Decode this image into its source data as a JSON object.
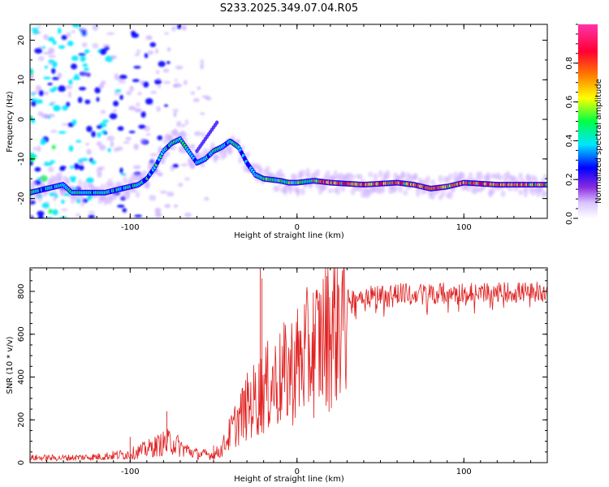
{
  "title": "S233.2025.349.07.04.R05",
  "chart_data": [
    {
      "type": "heatmap",
      "name": "spectrogram",
      "xlabel": "Height of straight line (km)",
      "ylabel": "Frequency (Hz)",
      "xlim": [
        -160,
        150
      ],
      "ylim": [
        -25,
        24
      ],
      "xticks": [
        -100,
        0,
        100
      ],
      "yticks": [
        -20,
        -10,
        0,
        10,
        20
      ],
      "colorbar": {
        "label": "Normalized spectral amplitude",
        "range": [
          0,
          1
        ],
        "ticks": [
          "0.0",
          "0.2",
          "0.4",
          "0.6",
          "0.8"
        ],
        "colors": [
          "#ffffff",
          "#8a2be2",
          "#0000ff",
          "#00e5ff",
          "#00ff44",
          "#ffff00",
          "#ff7a00",
          "#ff0033",
          "#ff33aa"
        ]
      },
      "ridge": [
        [
          -160,
          -18.5
        ],
        [
          -150,
          -17.5
        ],
        [
          -140,
          -16.5
        ],
        [
          -135,
          -18.5
        ],
        [
          -125,
          -18.5
        ],
        [
          -115,
          -18.5
        ],
        [
          -105,
          -17.5
        ],
        [
          -95,
          -16.5
        ],
        [
          -90,
          -15
        ],
        [
          -85,
          -12
        ],
        [
          -80,
          -8
        ],
        [
          -75,
          -6
        ],
        [
          -70,
          -5
        ],
        [
          -60,
          -11
        ],
        [
          -55,
          -10
        ],
        [
          -50,
          -8
        ],
        [
          -45,
          -7
        ],
        [
          -40,
          -5.5
        ],
        [
          -35,
          -7
        ],
        [
          -30,
          -11
        ],
        [
          -25,
          -14
        ],
        [
          -20,
          -15
        ],
        [
          -10,
          -15.5
        ],
        [
          -5,
          -16
        ],
        [
          0,
          -16
        ],
        [
          10,
          -15.5
        ],
        [
          20,
          -16
        ],
        [
          40,
          -16.5
        ],
        [
          60,
          -16
        ],
        [
          70,
          -16.5
        ],
        [
          80,
          -17.5
        ],
        [
          90,
          -17
        ],
        [
          100,
          -16
        ],
        [
          120,
          -16.5
        ],
        [
          150,
          -16.5
        ]
      ]
    },
    {
      "type": "line",
      "name": "snr",
      "xlabel": "Height of straight line (km)",
      "ylabel": "SNR (10 * v/v)",
      "xlim": [
        -160,
        150
      ],
      "ylim": [
        0,
        910
      ],
      "xticks": [
        -100,
        0,
        100
      ],
      "yticks": [
        0,
        200,
        400,
        600,
        800
      ],
      "color": "#e02020",
      "envelope": [
        [
          -160,
          25
        ],
        [
          -140,
          25
        ],
        [
          -120,
          30
        ],
        [
          -100,
          45
        ],
        [
          -90,
          70
        ],
        [
          -80,
          100
        ],
        [
          -75,
          110
        ],
        [
          -70,
          80
        ],
        [
          -60,
          45
        ],
        [
          -50,
          40
        ],
        [
          -45,
          70
        ],
        [
          -40,
          150
        ],
        [
          -35,
          220
        ],
        [
          -30,
          280
        ],
        [
          -25,
          320
        ],
        [
          -20,
          360
        ],
        [
          -15,
          400
        ],
        [
          -10,
          420
        ],
        [
          -5,
          460
        ],
        [
          0,
          500
        ],
        [
          5,
          540
        ],
        [
          10,
          580
        ],
        [
          15,
          620
        ],
        [
          20,
          680
        ],
        [
          25,
          740
        ],
        [
          30,
          770
        ],
        [
          40,
          790
        ],
        [
          60,
          800
        ],
        [
          80,
          800
        ],
        [
          100,
          805
        ],
        [
          120,
          805
        ],
        [
          150,
          805
        ]
      ],
      "spikes": [
        [
          -22,
          910
        ],
        [
          -21,
          860
        ],
        [
          -100,
          120
        ],
        [
          -78,
          240
        ],
        [
          -50,
          80
        ]
      ]
    }
  ]
}
